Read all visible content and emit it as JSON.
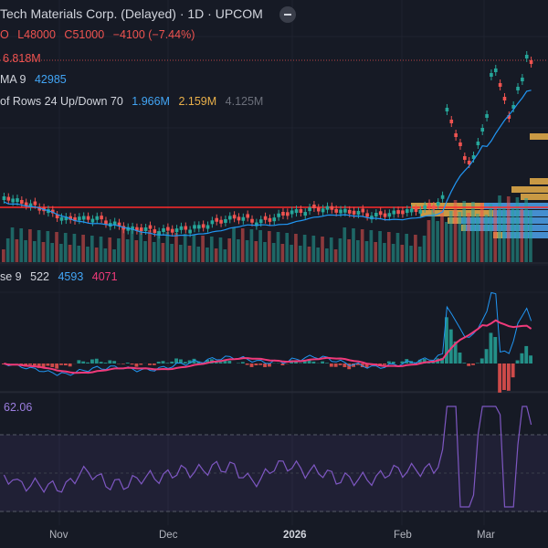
{
  "header": {
    "title": "Tech Materials Corp. (Delayed) · 1D · UPCOM",
    "ohlc": {
      "open_partial": "O",
      "low": "L48000",
      "close": "C51000",
      "change": "−4100 (−7.44%)"
    },
    "volume": "6.818M"
  },
  "indicators": {
    "ma_label": "MA 9",
    "ma_value": "42985",
    "vp_label": "of Rows 24 Up/Down 70",
    "vp_up": "1.966M",
    "vp_down": "2.159M",
    "vp_total": "4.125M",
    "macd_label": "se 9",
    "macd_hist": "522",
    "macd_line": "4593",
    "macd_signal": "4071",
    "rsi_value": "62.06"
  },
  "x_axis": {
    "ticks": [
      "Nov",
      "Dec",
      "2026",
      "Feb",
      "Mar"
    ]
  },
  "colors": {
    "up": "#26a69a",
    "down": "#ef5350",
    "ma": "#2196f3",
    "macd": "#2196f3",
    "signal": "#f03a7a",
    "rsi": "#7e57c2",
    "vp_up": "#e9b04a",
    "vp_down": "#2e8ce8"
  },
  "chart_data": {
    "type": "candlestick",
    "x_ticks": [
      "Nov",
      "Dec",
      "2026",
      "Feb",
      "Mar"
    ],
    "price_summary": {
      "last_close": 51000,
      "last_low": 48000,
      "change": -4100,
      "change_pct": -7.44
    },
    "volume_last": "6.818M",
    "ma9_last": 42985,
    "macd_last": {
      "histogram": 522,
      "macd": 4593,
      "signal": 4071
    },
    "rsi_last": 62.06
  }
}
